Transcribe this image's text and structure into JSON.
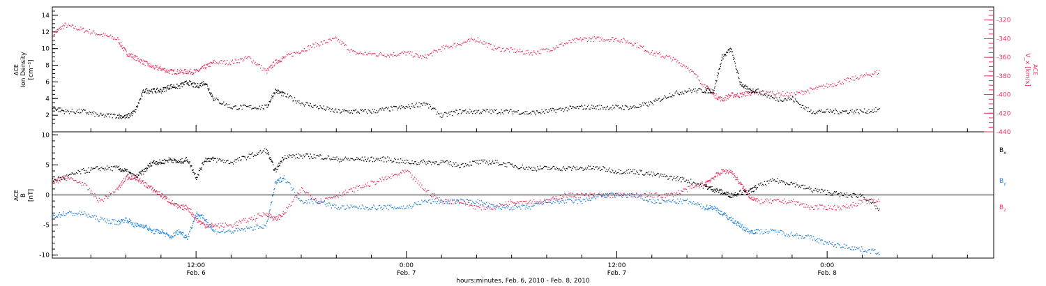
{
  "figure": {
    "xlabel": "hours:minutes, Feb. 6, 2010 - Feb. 8, 2010",
    "x_ticks": [
      {
        "time": "12:00",
        "date": "Feb. 6",
        "hour": 12
      },
      {
        "time": "0:00",
        "date": "Feb. 7",
        "hour": 24
      },
      {
        "time": "12:00",
        "date": "Feb. 7",
        "hour": 36
      },
      {
        "time": "0:00",
        "date": "Feb. 8",
        "hour": 48
      }
    ],
    "xlim_hours": [
      3.8,
      57.5
    ],
    "colors": {
      "black": "#000000",
      "pink": "#e8305f",
      "blue": "#1a7fdc"
    }
  },
  "chart_data": [
    {
      "type": "scatter",
      "panel": "top",
      "ylabel_left": [
        "ACE",
        "Ion Density",
        "[cm⁻³]"
      ],
      "ylabel_right": [
        "ACE",
        "V_x [km/s]"
      ],
      "ylim_left": [
        0,
        15
      ],
      "ylim_right": [
        -440,
        -306
      ],
      "ticks_left": [
        2,
        4,
        6,
        8,
        10,
        12,
        14
      ],
      "ticks_right": [
        -440,
        -420,
        -400,
        -380,
        -360,
        -340,
        -320
      ],
      "series": [
        {
          "name": "Ion Density",
          "axis": "left",
          "color": "#000000",
          "x": [
            3.8,
            4.5,
            5.5,
            6.5,
            7.5,
            8.0,
            8.5,
            9.0,
            9.5,
            10.0,
            10.5,
            11.0,
            11.5,
            12.0,
            12.5,
            13.0,
            14.0,
            15.0,
            16.0,
            16.5,
            17.0,
            18.0,
            19.0,
            20.0,
            21.0,
            22.0,
            23.0,
            24.0,
            25.0,
            26.0,
            27.0,
            28.0,
            29.0,
            30.0,
            31.0,
            32.0,
            33.0,
            34.0,
            35.0,
            36.0,
            37.0,
            38.0,
            39.0,
            40.0,
            41.0,
            41.5,
            42.0,
            42.5,
            43.0,
            43.5,
            44.0,
            45.0,
            46.0,
            47.0,
            48.0,
            49.0,
            50.0,
            51.0
          ],
          "y": [
            3,
            2.5,
            2.5,
            2,
            2,
            1.8,
            2.5,
            5,
            5,
            5,
            5.5,
            5.5,
            6,
            5.5,
            6,
            4,
            3,
            3,
            3,
            5,
            4.5,
            3.5,
            3,
            2.5,
            2.5,
            2.5,
            2.8,
            3,
            3.5,
            2,
            2.5,
            2.5,
            2.5,
            2.5,
            2.3,
            2.5,
            2.8,
            3,
            3,
            3,
            3,
            3.5,
            4.5,
            5,
            5,
            5,
            9,
            10,
            6,
            5,
            5,
            4,
            4,
            2.5,
            2.5,
            2.5,
            2.5,
            2.7
          ]
        },
        {
          "name": "V_x",
          "axis": "right",
          "color": "#e8305f",
          "x": [
            3.8,
            4.5,
            5.5,
            6.5,
            7.5,
            8.0,
            8.5,
            9.0,
            9.5,
            10.0,
            10.5,
            11.0,
            11.5,
            12.0,
            12.5,
            13.0,
            14.0,
            15.0,
            16.0,
            16.5,
            17.0,
            18.0,
            19.0,
            20.0,
            21.0,
            22.0,
            23.0,
            24.0,
            25.0,
            26.0,
            27.0,
            28.0,
            29.0,
            30.0,
            31.0,
            32.0,
            33.0,
            34.0,
            35.0,
            36.0,
            37.0,
            38.0,
            39.0,
            40.0,
            41.0,
            41.5,
            42.0,
            42.5,
            43.0,
            43.5,
            44.0,
            45.0,
            46.0,
            47.0,
            48.0,
            49.0,
            50.0,
            51.0
          ],
          "y": [
            -335,
            -325,
            -330,
            -335,
            -340,
            -355,
            -360,
            -365,
            -370,
            -372,
            -375,
            -375,
            -375,
            -375,
            -370,
            -365,
            -365,
            -360,
            -375,
            -365,
            -360,
            -352,
            -345,
            -340,
            -355,
            -356,
            -357,
            -355,
            -360,
            -350,
            -345,
            -340,
            -350,
            -352,
            -355,
            -352,
            -345,
            -340,
            -340,
            -340,
            -345,
            -355,
            -360,
            -370,
            -390,
            -400,
            -405,
            -400,
            -400,
            -398,
            -398,
            -398,
            -400,
            -395,
            -390,
            -385,
            -380,
            -375
          ]
        }
      ]
    },
    {
      "type": "scatter",
      "panel": "bottom",
      "ylabel_left": [
        "ACE",
        "B",
        "[nT]"
      ],
      "ylim": [
        -10.5,
        10.5
      ],
      "ticks": [
        -10,
        -5,
        0,
        5,
        10
      ],
      "zero_line": true,
      "series": [
        {
          "name": "B_x",
          "color": "#000000",
          "x": [
            3.8,
            4.5,
            5.5,
            6.5,
            7.5,
            8.0,
            8.5,
            9.0,
            9.5,
            10.0,
            10.5,
            11.0,
            11.5,
            12.0,
            12.5,
            13.0,
            14.0,
            15.0,
            16.0,
            16.5,
            17.0,
            18.0,
            19.0,
            20.0,
            21.0,
            22.0,
            23.0,
            24.0,
            25.0,
            26.0,
            27.0,
            28.0,
            29.0,
            30.0,
            31.0,
            32.0,
            33.0,
            34.0,
            35.0,
            36.0,
            37.0,
            38.0,
            39.0,
            40.0,
            41.0,
            41.5,
            42.0,
            42.5,
            43.0,
            43.5,
            44.0,
            45.0,
            46.0,
            47.0,
            48.0,
            49.0,
            50.0,
            51.0
          ],
          "y": [
            2.5,
            3,
            4,
            4.5,
            4.5,
            4,
            3,
            4,
            5.5,
            5.5,
            6,
            5.5,
            6,
            3,
            6,
            6,
            5.5,
            6.5,
            7.5,
            4,
            6.5,
            6.5,
            6.5,
            6,
            6,
            6,
            6,
            5.5,
            5.5,
            5.5,
            5,
            5.5,
            5.5,
            5,
            4.5,
            4.5,
            4.5,
            4.5,
            4.5,
            4,
            4,
            3.5,
            3,
            2.5,
            1.5,
            1,
            0.5,
            0,
            0.5,
            0.5,
            1.5,
            2.5,
            2,
            1,
            0.5,
            0,
            0,
            -2.5
          ]
        },
        {
          "name": "B_y",
          "color": "#1a7fdc",
          "x": [
            3.8,
            4.5,
            5.5,
            6.5,
            7.5,
            8.0,
            8.5,
            9.0,
            9.5,
            10.0,
            10.5,
            11.0,
            11.5,
            12.0,
            12.5,
            13.0,
            14.0,
            15.0,
            16.0,
            16.5,
            17.0,
            18.0,
            19.0,
            20.0,
            21.0,
            22.0,
            23.0,
            24.0,
            25.0,
            26.0,
            27.0,
            28.0,
            29.0,
            30.0,
            31.0,
            32.0,
            33.0,
            34.0,
            35.0,
            36.0,
            37.0,
            38.0,
            39.0,
            40.0,
            41.0,
            41.5,
            42.0,
            42.5,
            43.0,
            43.5,
            44.0,
            45.0,
            46.0,
            47.0,
            48.0,
            49.0,
            50.0,
            51.0
          ],
          "y": [
            -3.5,
            -3,
            -3,
            -4,
            -4.5,
            -4,
            -5,
            -5,
            -6,
            -6,
            -7,
            -6,
            -7,
            -3,
            -4,
            -6,
            -6,
            -5.5,
            -5,
            2,
            3,
            -1,
            -1,
            -2,
            -2,
            -2,
            -2,
            -2,
            -1,
            -1,
            -1,
            -1,
            -2,
            -2,
            -2,
            -1,
            -1,
            -1,
            0,
            0,
            0,
            -1,
            -1,
            -1,
            -2,
            -2,
            -3,
            -4,
            -5,
            -6,
            -6,
            -6,
            -6.5,
            -7,
            -8,
            -8.5,
            -9,
            -9.5
          ]
        },
        {
          "name": "B_z",
          "color": "#e8305f",
          "x": [
            3.8,
            4.5,
            5.5,
            6.5,
            7.5,
            8.0,
            8.5,
            9.0,
            9.5,
            10.0,
            10.5,
            11.0,
            11.5,
            12.0,
            12.5,
            13.0,
            14.0,
            15.0,
            16.0,
            16.5,
            17.0,
            18.0,
            19.0,
            20.0,
            21.0,
            22.0,
            23.0,
            24.0,
            25.0,
            26.0,
            27.0,
            28.0,
            29.0,
            30.0,
            31.0,
            32.0,
            33.0,
            34.0,
            35.0,
            36.0,
            37.0,
            38.0,
            39.0,
            40.0,
            41.0,
            41.5,
            42.0,
            42.5,
            43.0,
            43.5,
            44.0,
            45.0,
            46.0,
            47.0,
            48.0,
            49.0,
            50.0,
            51.0
          ],
          "y": [
            2,
            3,
            2,
            -1,
            1,
            3,
            3,
            2,
            1,
            0,
            -1,
            -2,
            -2,
            -4,
            -5,
            -5,
            -5,
            -4,
            -3,
            -4,
            -3,
            1,
            -1,
            0,
            1,
            2,
            3,
            4,
            1,
            -1,
            -1,
            -2,
            -2,
            -1,
            -1,
            -1,
            0,
            0,
            0,
            0,
            0,
            0,
            0,
            1,
            2,
            3,
            4,
            4,
            2,
            0,
            -1,
            -1,
            -1,
            -2,
            -2,
            -2,
            -1,
            -1
          ]
        }
      ],
      "legend": [
        {
          "label": "B",
          "sub": "x",
          "color": "#000000"
        },
        {
          "label": "B",
          "sub": "y",
          "color": "#1a7fdc"
        },
        {
          "label": "B",
          "sub": "z",
          "color": "#e8305f"
        }
      ]
    }
  ]
}
